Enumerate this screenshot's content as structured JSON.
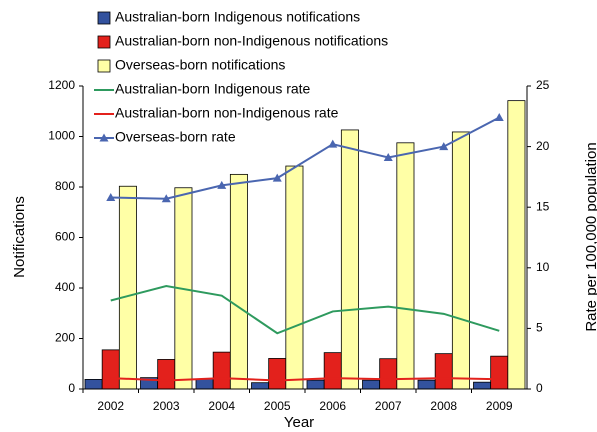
{
  "chart_data": {
    "type": "bar",
    "x_label": "Year",
    "y_label": "Notifications",
    "y2_label": "Rate per 100,000 population",
    "categories": [
      "2002",
      "2003",
      "2004",
      "2005",
      "2006",
      "2007",
      "2008",
      "2009"
    ],
    "series": [
      {
        "name": "Australian-born Indigenous notifications",
        "type": "bar",
        "color": "#33529e",
        "values": [
          38,
          45,
          40,
          25,
          35,
          35,
          35,
          27
        ]
      },
      {
        "name": "Australian-born non-Indigenous notifications",
        "type": "bar",
        "color": "#e3211c",
        "values": [
          155,
          117,
          146,
          121,
          144,
          120,
          140,
          130
        ]
      },
      {
        "name": "Overseas-born notifications",
        "type": "bar",
        "color": "#ffffa6",
        "values": [
          803,
          797,
          850,
          883,
          1026,
          975,
          1018,
          1142
        ]
      },
      {
        "name": "Australian-born Indigenous rate",
        "type": "line",
        "axis": "y2",
        "color": "#2e9a5e",
        "values": [
          7.3,
          8.5,
          7.7,
          4.6,
          6.4,
          6.8,
          6.2,
          4.8
        ]
      },
      {
        "name": "Australian-born non-Indigenous rate",
        "type": "line",
        "axis": "y2",
        "color": "#e3211c",
        "values": [
          0.9,
          0.7,
          0.9,
          0.7,
          0.9,
          0.8,
          0.9,
          0.8
        ]
      },
      {
        "name": "Overseas-born rate",
        "type": "line",
        "axis": "y2",
        "color": "#4a66b0",
        "marker": "triangle",
        "values": [
          15.8,
          15.7,
          16.8,
          17.4,
          20.2,
          19.1,
          20.0,
          22.4
        ]
      }
    ],
    "ylim": [
      0,
      1200
    ],
    "yticks": [
      0,
      200,
      400,
      600,
      800,
      1000,
      1200
    ],
    "y2lim": [
      0,
      25
    ],
    "y2ticks": [
      0,
      5,
      10,
      15,
      20,
      25
    ],
    "grid": false
  }
}
